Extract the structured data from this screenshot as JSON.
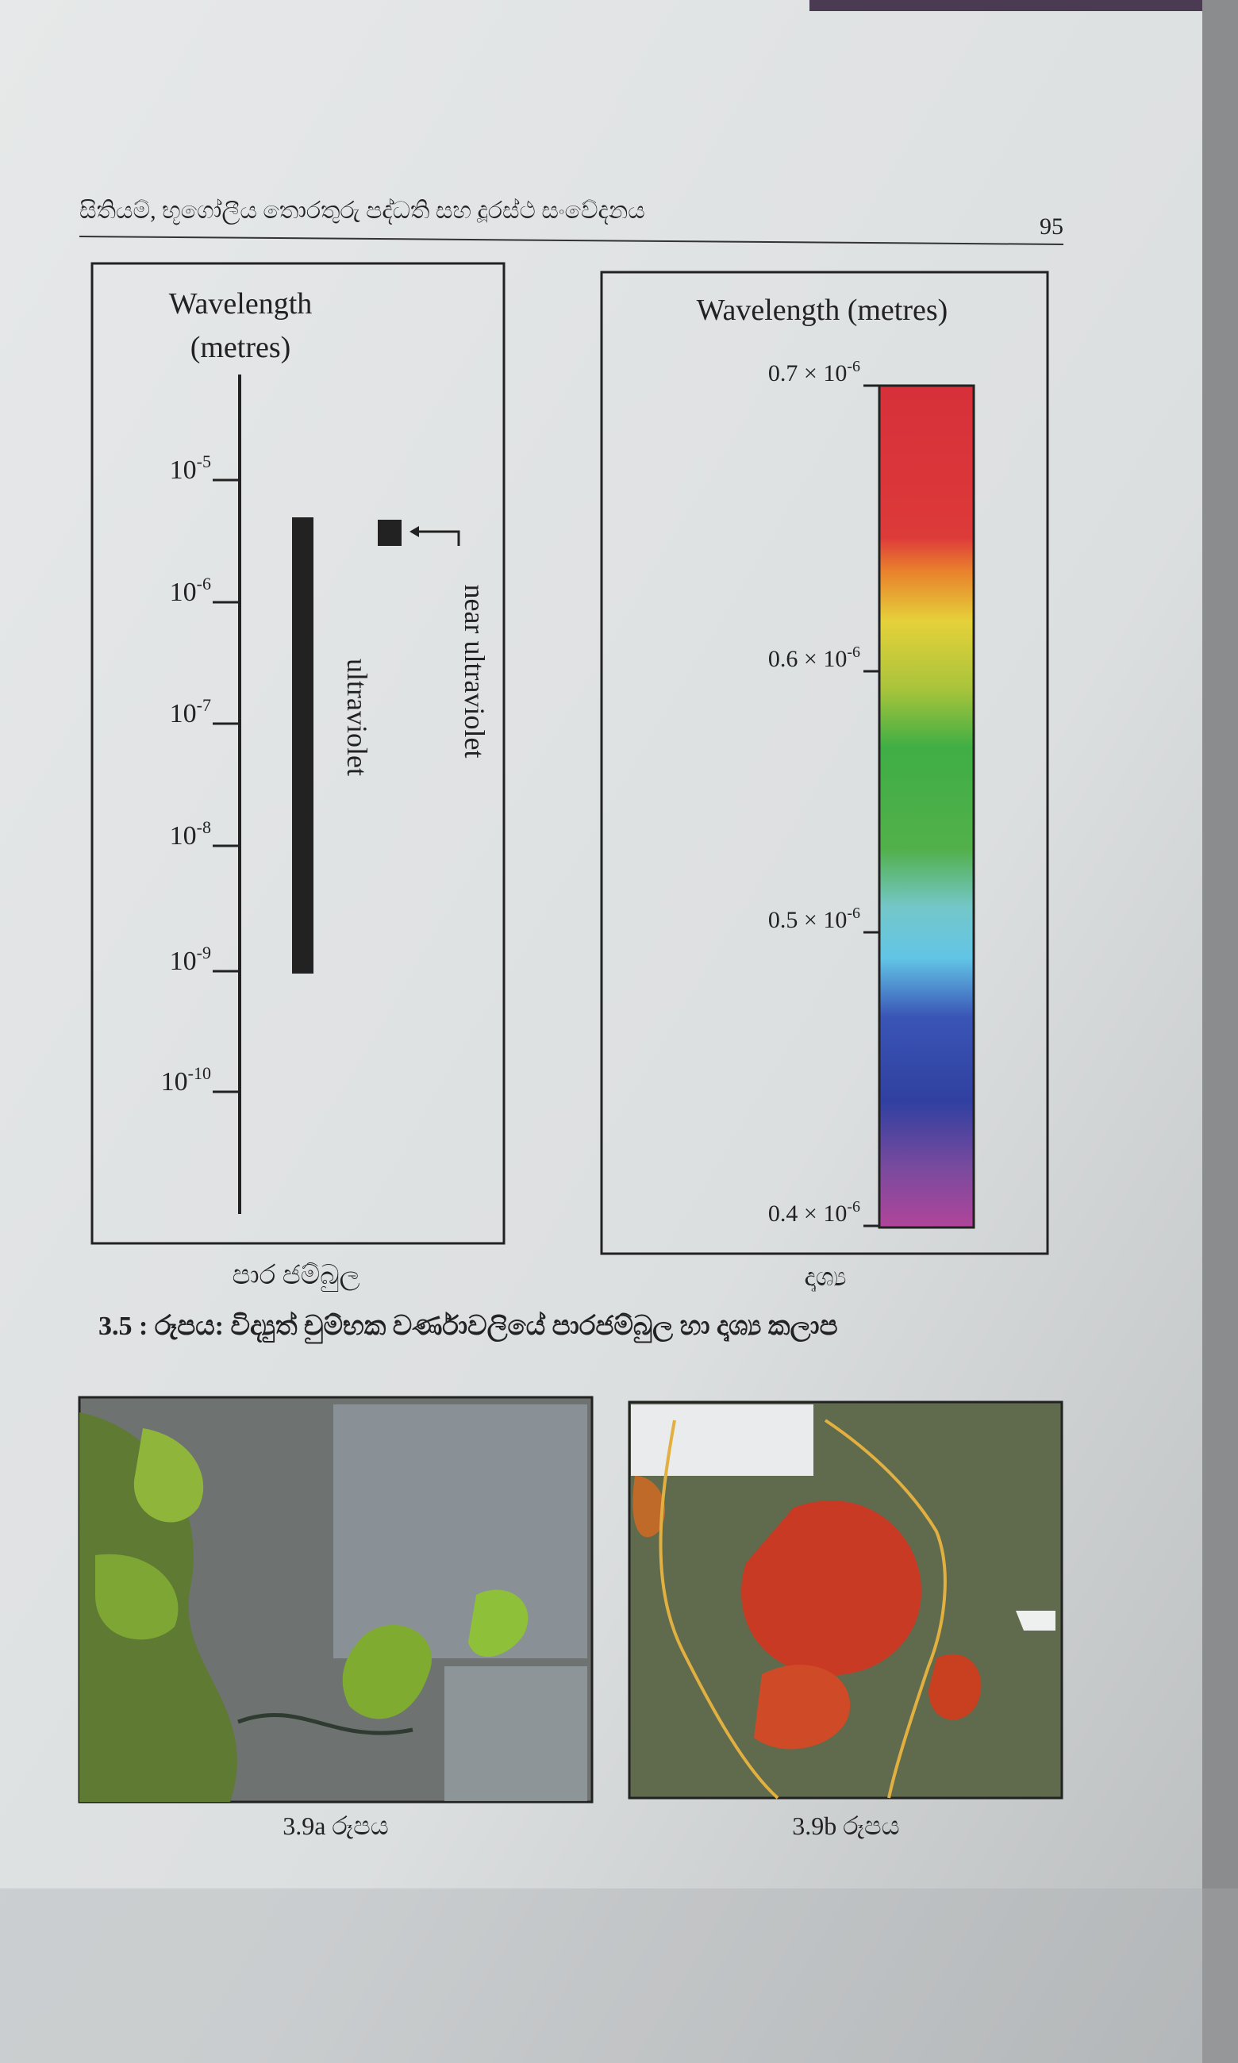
{
  "header": {
    "title": "සිතියම්, භූගෝලීය තොරතුරු පද්ධති සහ දූරස්ථ සංවේදනය",
    "page_number": "95"
  },
  "figure_3_5": {
    "left_panel": {
      "title_line1": "Wavelength",
      "title_line2": "(metres)",
      "ticks": [
        {
          "base": "10",
          "exp": "-5"
        },
        {
          "base": "10",
          "exp": "-6"
        },
        {
          "base": "10",
          "exp": "-7"
        },
        {
          "base": "10",
          "exp": "-8"
        },
        {
          "base": "10",
          "exp": "-9"
        },
        {
          "base": "10",
          "exp": "-10"
        }
      ],
      "band_label": "ultraviolet",
      "near_label": "near ultraviolet",
      "caption": "පාර ජම්බුල"
    },
    "right_panel": {
      "title": "Wavelength (metres)",
      "ticks": [
        {
          "mantissa": "0.7 × 10",
          "exp": "-6"
        },
        {
          "mantissa": "0.6 × 10",
          "exp": "-6"
        },
        {
          "mantissa": "0.5 × 10",
          "exp": "-6"
        },
        {
          "mantissa": "0.4 × 10",
          "exp": "-6"
        }
      ],
      "caption": "දෘශ්‍ය"
    },
    "caption": "3.5 : රූපය: විද්‍යුත් චුම්භක වර්ණාවලියේ පාරජම්බුල හා දෘශ්‍ය කලාප"
  },
  "images": [
    {
      "caption": "3.9a රූපය"
    },
    {
      "caption": "3.9b රූපය"
    }
  ]
}
